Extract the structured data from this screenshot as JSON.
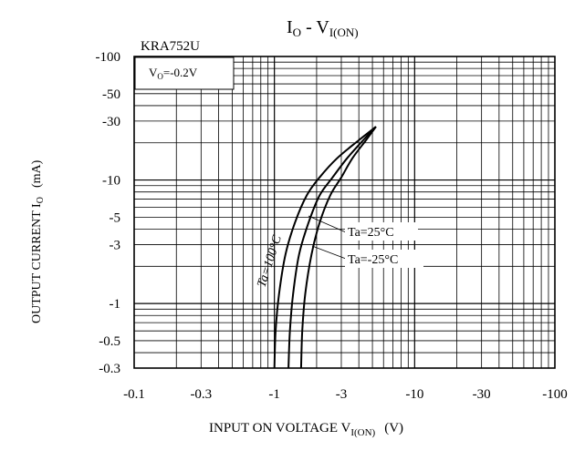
{
  "chart_data": {
    "type": "line",
    "title": {
      "main": "I",
      "main_sub": "O",
      "sep": " - V",
      "sep_sub": "I(ON)"
    },
    "part_number": "KRA752U",
    "condition": {
      "prefix": "V",
      "sub": "O",
      "suffix": "=-0.2V"
    },
    "xlabel": {
      "main": "INPUT ON VOLTAGE V",
      "sub": "I(ON)",
      "unit": "(V)"
    },
    "ylabel": {
      "main": "OUTPUT CURRENT I",
      "sub": "O",
      "unit": "(mA)"
    },
    "x_scale": "log",
    "y_scale": "log",
    "xlim": [
      -0.1,
      -100
    ],
    "ylim": [
      -0.3,
      -100
    ],
    "x_ticks": [
      {
        "value": -0.1,
        "label": "-0.1"
      },
      {
        "value": -0.3,
        "label": "-0.3"
      },
      {
        "value": -1,
        "label": "-1"
      },
      {
        "value": -3,
        "label": "-3"
      },
      {
        "value": -10,
        "label": "-10"
      },
      {
        "value": -30,
        "label": "-30"
      },
      {
        "value": -100,
        "label": "-100"
      }
    ],
    "y_ticks": [
      {
        "value": -100,
        "label": "-100"
      },
      {
        "value": -50,
        "label": "-50"
      },
      {
        "value": -30,
        "label": "-30"
      },
      {
        "value": -10,
        "label": "-10"
      },
      {
        "value": -5,
        "label": "-5"
      },
      {
        "value": -3,
        "label": "-3"
      },
      {
        "value": -1,
        "label": "-1"
      },
      {
        "value": -0.5,
        "label": "-0.5"
      },
      {
        "value": -0.3,
        "label": "-0.3"
      }
    ],
    "grid": true,
    "series": [
      {
        "name": "Ta=100°C",
        "points": [
          [
            -1.0,
            -0.3
          ],
          [
            -1.02,
            -0.6
          ],
          [
            -1.08,
            -1.2
          ],
          [
            -1.2,
            -2.5
          ],
          [
            -1.4,
            -4.5
          ],
          [
            -1.7,
            -7.5
          ],
          [
            -2.1,
            -10.5
          ],
          [
            -2.8,
            -15
          ],
          [
            -4.0,
            -21
          ],
          [
            -5.3,
            -27
          ]
        ]
      },
      {
        "name": "Ta=25°C",
        "points": [
          [
            -1.26,
            -0.3
          ],
          [
            -1.29,
            -0.6
          ],
          [
            -1.36,
            -1.2
          ],
          [
            -1.5,
            -2.5
          ],
          [
            -1.75,
            -4.5
          ],
          [
            -2.1,
            -7.5
          ],
          [
            -2.6,
            -10.5
          ],
          [
            -3.3,
            -15
          ],
          [
            -4.3,
            -21
          ],
          [
            -5.3,
            -27
          ]
        ]
      },
      {
        "name": "Ta=-25°C",
        "points": [
          [
            -1.55,
            -0.3
          ],
          [
            -1.58,
            -0.6
          ],
          [
            -1.66,
            -1.2
          ],
          [
            -1.84,
            -2.5
          ],
          [
            -2.1,
            -4.5
          ],
          [
            -2.5,
            -7.5
          ],
          [
            -3.0,
            -10.5
          ],
          [
            -3.6,
            -15
          ],
          [
            -4.5,
            -21
          ],
          [
            -5.3,
            -27
          ]
        ]
      }
    ],
    "labels": {
      "ta100": "Ta=100°C",
      "ta25": "Ta=25°C",
      "tam25": "Ta=-25°C"
    }
  }
}
